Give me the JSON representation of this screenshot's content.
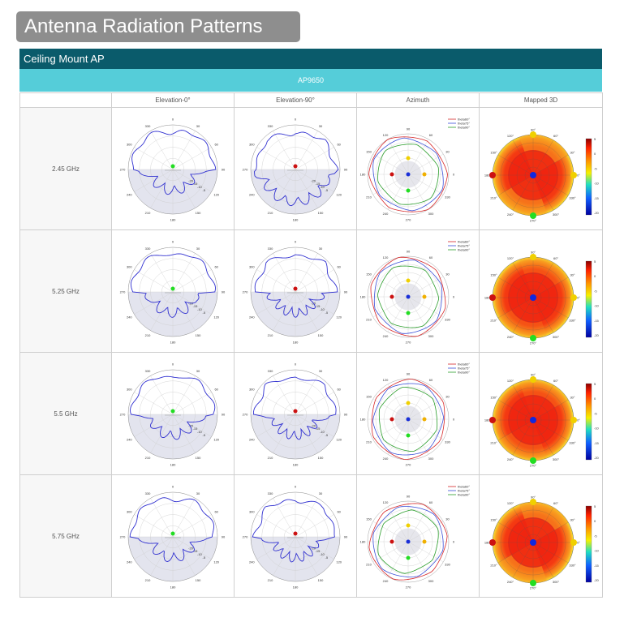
{
  "page_title": "Antenna Radiation Patterns",
  "section_title": "Ceiling Mount AP",
  "model": "AP9650",
  "columns": [
    "",
    "Elevation-0°",
    "Elevation-90°",
    "Azimuth",
    "Mapped 3D"
  ],
  "rows": [
    {
      "frequency": "2.45 GHz"
    },
    {
      "frequency": "5.25 GHz"
    },
    {
      "frequency": "5.5 GHz"
    },
    {
      "frequency": "5.75 GHz"
    }
  ],
  "elevation_angle_labels": [
    "0",
    "30",
    "60",
    "90",
    "120",
    "150",
    "180",
    "210",
    "240",
    "270",
    "300",
    "330"
  ],
  "elevation_ring_labels": [
    "-5",
    "-10",
    "-15",
    "-20"
  ],
  "azimuth_angle_labels": [
    "90",
    "60",
    "30",
    "0",
    "330",
    "300",
    "270",
    "240",
    "210",
    "180",
    "150",
    "120"
  ],
  "azimuth_legend": [
    "theta60°",
    "theta75°",
    "theta90°"
  ],
  "map3d_angle_labels": [
    "90°",
    "60°",
    "30°",
    "0°",
    "330°",
    "300°",
    "270°",
    "240°",
    "210°",
    "180°",
    "150°",
    "120°"
  ],
  "colorbar_ticks": [
    "5",
    "0",
    "-5",
    "-10",
    "-15",
    "-20"
  ],
  "colors": {
    "title_tab": "#8e8e8e",
    "section_bar": "#0a5b6b",
    "model_bar": "#55cdd9",
    "pattern_line": "#3030d0",
    "azimuth_series": [
      "#d62728",
      "#3a4fd8",
      "#2a9d2a"
    ]
  }
}
